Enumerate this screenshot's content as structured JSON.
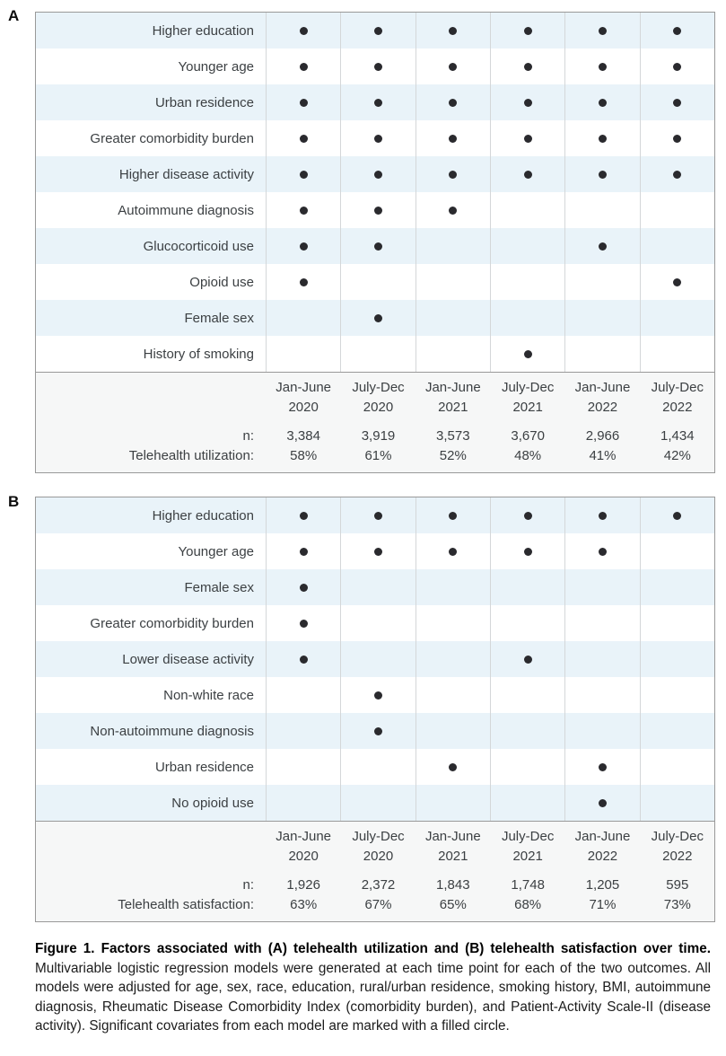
{
  "caption": {
    "bold": "Figure 1. Factors associated with (A) telehealth utilization and (B) telehealth satisfaction over time.",
    "rest": " Multivariable logistic regression models were generated at each time point for each of the two outcomes. All models were adjusted for age, sex, race, education, rural/urban residence, smoking history, BMI, autoimmune diagnosis, Rheumatic Disease Comorbidity Index (comorbidity burden), and Patient-Activity Scale-II (disease activity). Significant covariates from each model are marked with a filled circle."
  },
  "colors": {
    "row_alt": "#e9f3f9",
    "dot": "#2a2a2e",
    "footer_bg": "#f6f7f7",
    "border": "#999999",
    "grid": "#d4d7d9",
    "text": "#3c4043",
    "caption_text": "#1c1c1c"
  },
  "chart_data": [
    {
      "type": "table",
      "panel": "A",
      "columns": [
        [
          "Jan-June",
          "2020"
        ],
        [
          "July-Dec",
          "2020"
        ],
        [
          "Jan-June",
          "2021"
        ],
        [
          "July-Dec",
          "2021"
        ],
        [
          "Jan-June",
          "2022"
        ],
        [
          "July-Dec",
          "2022"
        ]
      ],
      "rows": [
        {
          "label": "Higher education",
          "dots": [
            1,
            1,
            1,
            1,
            1,
            1
          ]
        },
        {
          "label": "Younger age",
          "dots": [
            1,
            1,
            1,
            1,
            1,
            1
          ]
        },
        {
          "label": "Urban residence",
          "dots": [
            1,
            1,
            1,
            1,
            1,
            1
          ]
        },
        {
          "label": "Greater comorbidity burden",
          "dots": [
            1,
            1,
            1,
            1,
            1,
            1
          ]
        },
        {
          "label": "Higher disease activity",
          "dots": [
            1,
            1,
            1,
            1,
            1,
            1
          ]
        },
        {
          "label": "Autoimmune diagnosis",
          "dots": [
            1,
            1,
            1,
            0,
            0,
            0
          ]
        },
        {
          "label": "Glucocorticoid use",
          "dots": [
            1,
            1,
            0,
            0,
            1,
            0
          ]
        },
        {
          "label": "Opioid use",
          "dots": [
            1,
            0,
            0,
            0,
            0,
            1
          ]
        },
        {
          "label": "Female sex",
          "dots": [
            0,
            1,
            0,
            0,
            0,
            0
          ]
        },
        {
          "label": "History of smoking",
          "dots": [
            0,
            0,
            0,
            1,
            0,
            0
          ]
        }
      ],
      "n_label": "n:",
      "n": [
        "3,384",
        "3,919",
        "3,573",
        "3,670",
        "2,966",
        "1,434"
      ],
      "outcome_label": "Telehealth utilization:",
      "outcome": [
        "58%",
        "61%",
        "52%",
        "48%",
        "41%",
        "42%"
      ]
    },
    {
      "type": "table",
      "panel": "B",
      "columns": [
        [
          "Jan-June",
          "2020"
        ],
        [
          "July-Dec",
          "2020"
        ],
        [
          "Jan-June",
          "2021"
        ],
        [
          "July-Dec",
          "2021"
        ],
        [
          "Jan-June",
          "2022"
        ],
        [
          "July-Dec",
          "2022"
        ]
      ],
      "rows": [
        {
          "label": "Higher education",
          "dots": [
            1,
            1,
            1,
            1,
            1,
            1
          ]
        },
        {
          "label": "Younger age",
          "dots": [
            1,
            1,
            1,
            1,
            1,
            0
          ]
        },
        {
          "label": "Female sex",
          "dots": [
            1,
            0,
            0,
            0,
            0,
            0
          ]
        },
        {
          "label": "Greater comorbidity burden",
          "dots": [
            1,
            0,
            0,
            0,
            0,
            0
          ]
        },
        {
          "label": "Lower disease activity",
          "dots": [
            1,
            0,
            0,
            1,
            0,
            0
          ]
        },
        {
          "label": "Non-white race",
          "dots": [
            0,
            1,
            0,
            0,
            0,
            0
          ]
        },
        {
          "label": "Non-autoimmune diagnosis",
          "dots": [
            0,
            1,
            0,
            0,
            0,
            0
          ]
        },
        {
          "label": "Urban residence",
          "dots": [
            0,
            0,
            1,
            0,
            1,
            0
          ]
        },
        {
          "label": "No opioid use",
          "dots": [
            0,
            0,
            0,
            0,
            1,
            0
          ]
        }
      ],
      "n_label": "n:",
      "n": [
        "1,926",
        "2,372",
        "1,843",
        "1,748",
        "1,205",
        "595"
      ],
      "outcome_label": "Telehealth satisfaction:",
      "outcome": [
        "63%",
        "67%",
        "65%",
        "68%",
        "71%",
        "73%"
      ]
    }
  ]
}
